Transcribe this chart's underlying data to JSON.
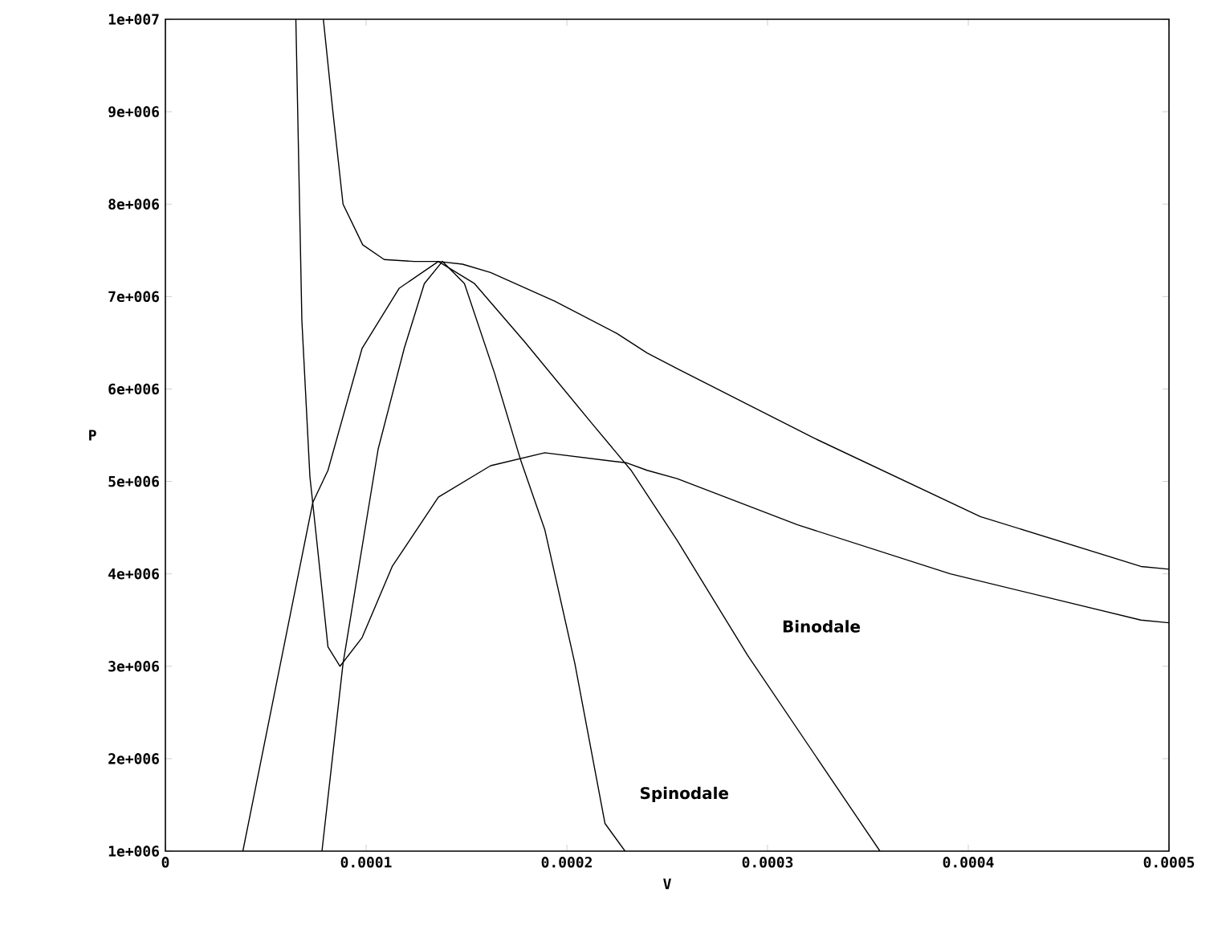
{
  "chart_data": {
    "type": "line",
    "xlabel": "V",
    "ylabel": "P",
    "xlim": [
      0,
      0.0005
    ],
    "ylim": [
      1000000,
      10000000
    ],
    "xticks": [
      0,
      0.0001,
      0.0002,
      0.0003,
      0.0004,
      0.0005
    ],
    "yticks": [
      {
        "value": 1000000,
        "label": "1e+006"
      },
      {
        "value": 2000000,
        "label": "2e+006"
      },
      {
        "value": 3000000,
        "label": "3e+006"
      },
      {
        "value": 4000000,
        "label": "4e+006"
      },
      {
        "value": 5000000,
        "label": "5e+006"
      },
      {
        "value": 6000000,
        "label": "6e+006"
      },
      {
        "value": 7000000,
        "label": "7e+006"
      },
      {
        "value": 8000000,
        "label": "8e+006"
      },
      {
        "value": 9000000,
        "label": "9e+006"
      },
      {
        "value": 10000000,
        "label": "1e+007"
      }
    ],
    "line_style": "solid",
    "marker": "none",
    "series": [
      {
        "color": "#000000",
        "x": [
          7.87e-05,
          8.32e-05,
          8.85e-05,
          9.83e-05,
          0.000109,
          0.000124,
          0.000136,
          0.000148,
          0.000162,
          0.000194,
          0.000225,
          0.00024,
          0.000255,
          0.000323,
          0.000406,
          0.000486,
          0.0005
        ],
        "values": [
          10000000,
          9050000,
          8000000,
          7560000,
          7400000,
          7380000,
          7380000,
          7350000,
          7260000,
          6950000,
          6600000,
          6390000,
          6220000,
          5470000,
          4620000,
          4080000,
          4050000
        ]
      },
      {
        "color": "#000000",
        "x": [
          6.5e-05,
          6.8e-05,
          7.2e-05,
          7.34e-05,
          8.1e-05,
          8.7e-05,
          9.8e-05,
          0.000113,
          0.000136,
          0.000162,
          0.000189,
          0.00023,
          0.00024,
          0.000255,
          0.000315,
          0.000391,
          0.000486,
          0.0005
        ],
        "values": [
          10000000,
          6740000,
          5050000,
          4770000,
          3210000,
          3000000,
          3310000,
          4080000,
          4830000,
          5170000,
          5310000,
          5200000,
          5120000,
          5030000,
          4530000,
          4000000,
          3500000,
          3470000
        ]
      },
      {
        "name": "Binodale",
        "color": "#000000",
        "x": [
          3.86e-05,
          7.34e-05,
          8.1e-05,
          9.8e-05,
          0.0001165,
          0.000136,
          0.000154,
          0.000179,
          0.000212,
          0.000232,
          0.000255,
          0.00029,
          0.000356
        ],
        "values": [
          1000000,
          4770000,
          5120000,
          6440000,
          7090000,
          7380000,
          7140000,
          6510000,
          5640000,
          5120000,
          4360000,
          3120000,
          1000000
        ]
      },
      {
        "name": "Spinodale",
        "color": "#000000",
        "x": [
          7.8e-05,
          8.85e-05,
          0.000106,
          0.000119,
          0.000129,
          0.000138,
          0.000149,
          0.000164,
          0.000177,
          0.000189,
          0.000204,
          0.000219,
          0.000229
        ],
        "values": [
          1000000,
          3030000,
          5350000,
          6440000,
          7140000,
          7380000,
          7140000,
          6170000,
          5230000,
          4480000,
          3030000,
          1300000,
          1000000
        ]
      }
    ]
  }
}
